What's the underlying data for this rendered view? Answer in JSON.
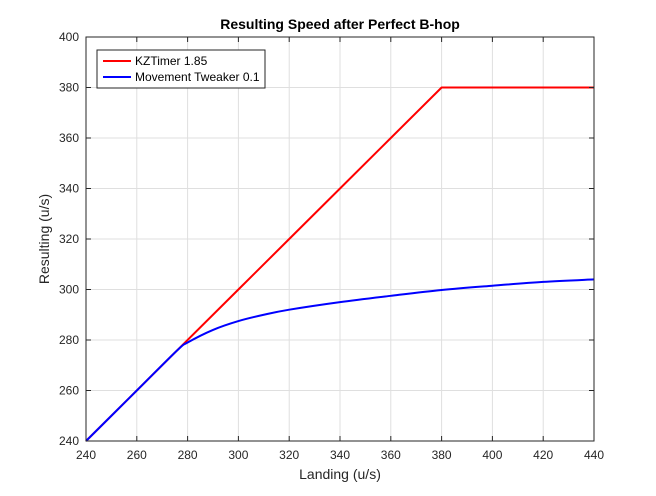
{
  "chart_data": {
    "type": "line",
    "title": "Resulting Speed after Perfect B-hop",
    "xlabel": "Landing (u/s)",
    "ylabel": "Resulting (u/s)",
    "xlim": [
      240,
      440
    ],
    "ylim": [
      240,
      400
    ],
    "xticks": [
      240,
      260,
      280,
      300,
      320,
      340,
      360,
      380,
      400,
      420,
      440
    ],
    "yticks": [
      240,
      260,
      280,
      300,
      320,
      340,
      360,
      380,
      400
    ],
    "grid": true,
    "legend_position": "top-left",
    "series": [
      {
        "name": "KZTimer 1.85",
        "color": "#ff0000",
        "x": [
          240,
          276,
          300,
          320,
          340,
          360,
          380,
          400,
          420,
          440
        ],
        "y": [
          240,
          276,
          300,
          320,
          340,
          360,
          380,
          380,
          380,
          380
        ]
      },
      {
        "name": "Movement Tweaker 0.1",
        "color": "#0000ff",
        "x": [
          240,
          260,
          276,
          280,
          290,
          300,
          310,
          320,
          340,
          360,
          380,
          400,
          420,
          440
        ],
        "y": [
          240,
          260,
          276,
          279,
          284,
          287.5,
          290,
          292,
          295,
          297.5,
          299.8,
          301.5,
          303,
          304
        ]
      }
    ]
  }
}
